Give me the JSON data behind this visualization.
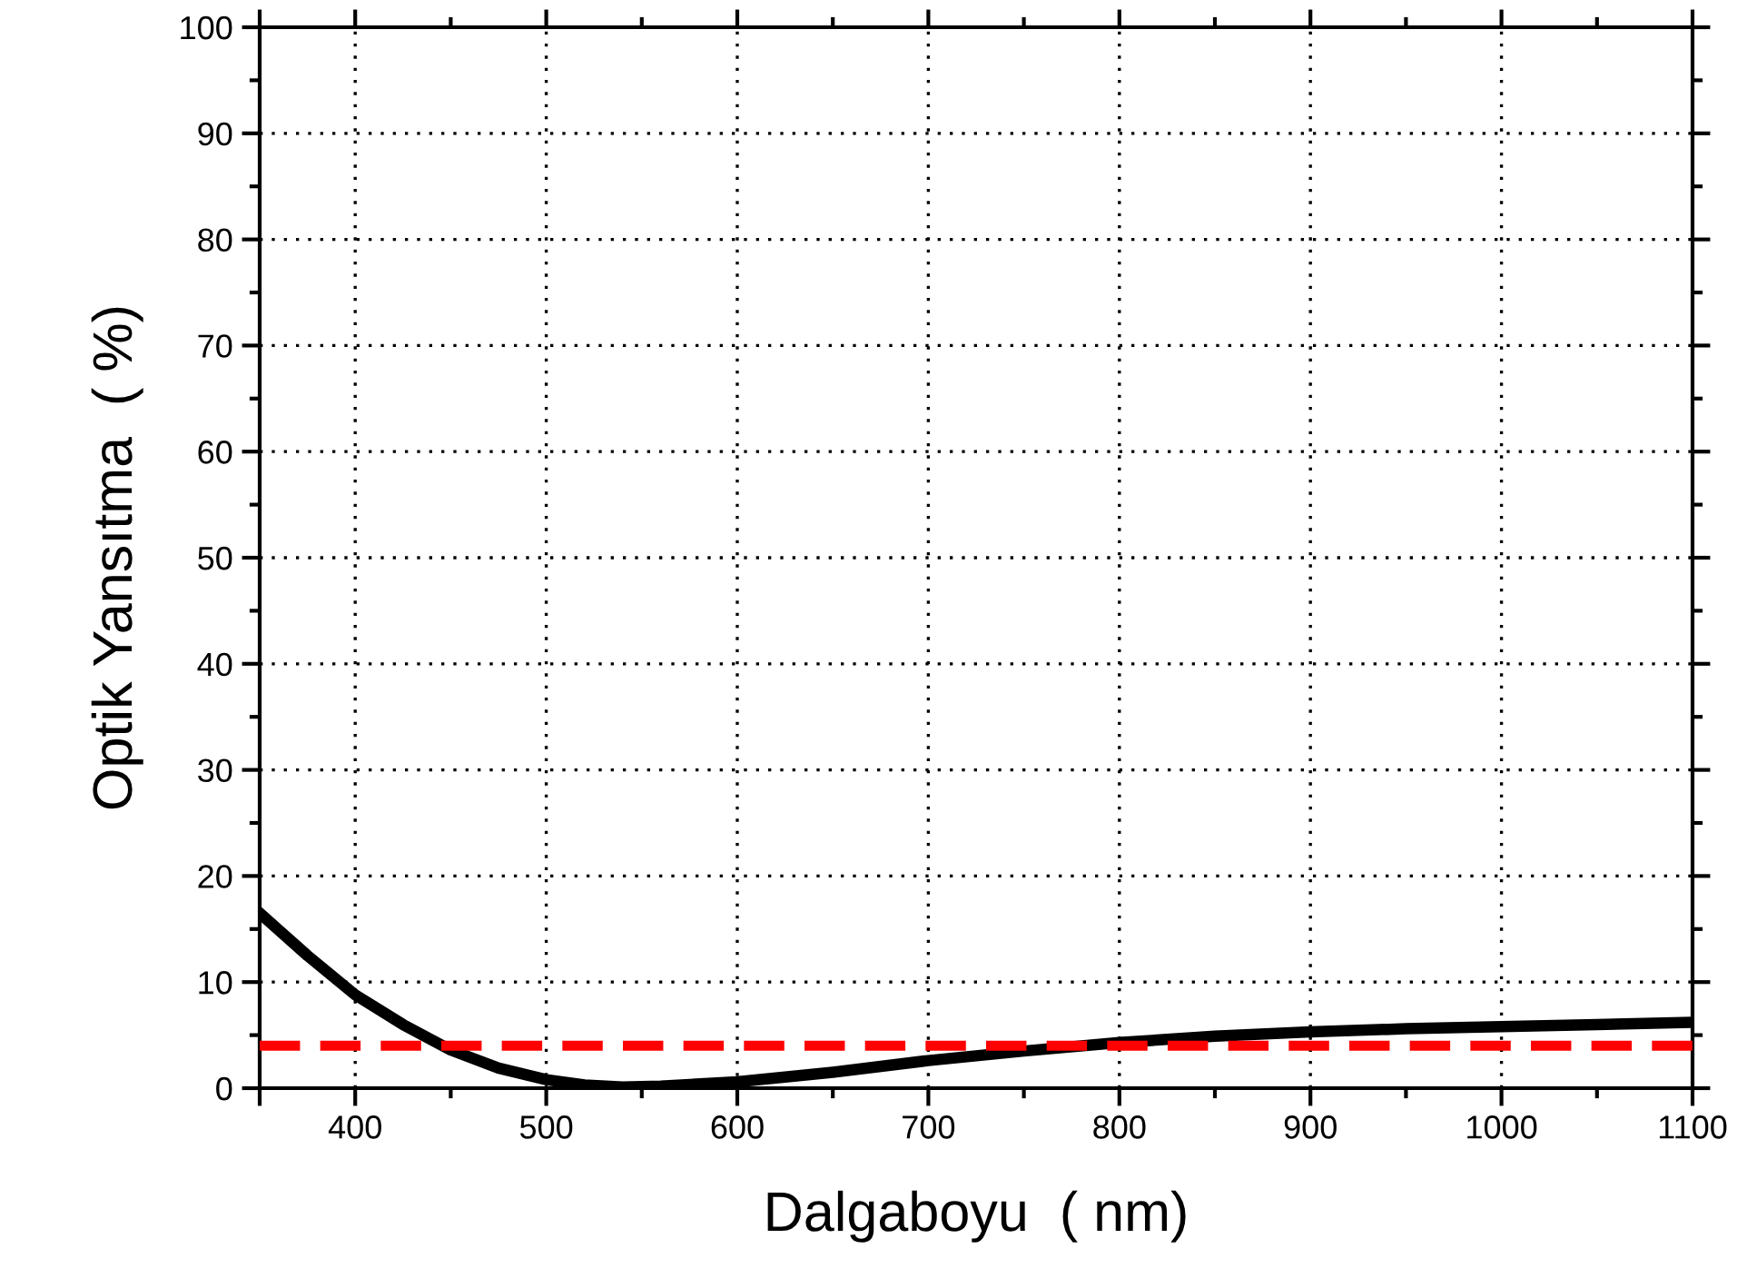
{
  "chart_data": {
    "type": "line",
    "xlabel": "Dalgaboyu  ( nm)",
    "ylabel": "Optik Yansıtma  ( %)",
    "x": [
      350,
      375,
      400,
      425,
      450,
      475,
      500,
      520,
      540,
      560,
      600,
      650,
      700,
      750,
      800,
      850,
      900,
      950,
      1000,
      1050,
      1100
    ],
    "series": [
      {
        "color": "#000000",
        "values": [
          16.5,
          12.5,
          8.8,
          6.0,
          3.6,
          1.9,
          0.8,
          0.3,
          0.1,
          0.2,
          0.6,
          1.5,
          2.6,
          3.5,
          4.3,
          4.9,
          5.3,
          5.6,
          5.8,
          6.0,
          6.2
        ]
      }
    ],
    "ref_lines": [
      {
        "axis": "y",
        "value": 4,
        "color": "#ff0000",
        "line_style": "dashed"
      }
    ],
    "xlim": [
      350,
      1100
    ],
    "ylim": [
      0,
      100
    ],
    "xticks": [
      {
        "value": 350,
        "label": null
      },
      400,
      500,
      600,
      700,
      800,
      900,
      1000,
      1100
    ],
    "yticks": [
      0,
      10,
      20,
      30,
      40,
      50,
      60,
      70,
      80,
      90,
      100
    ],
    "grid": true
  }
}
